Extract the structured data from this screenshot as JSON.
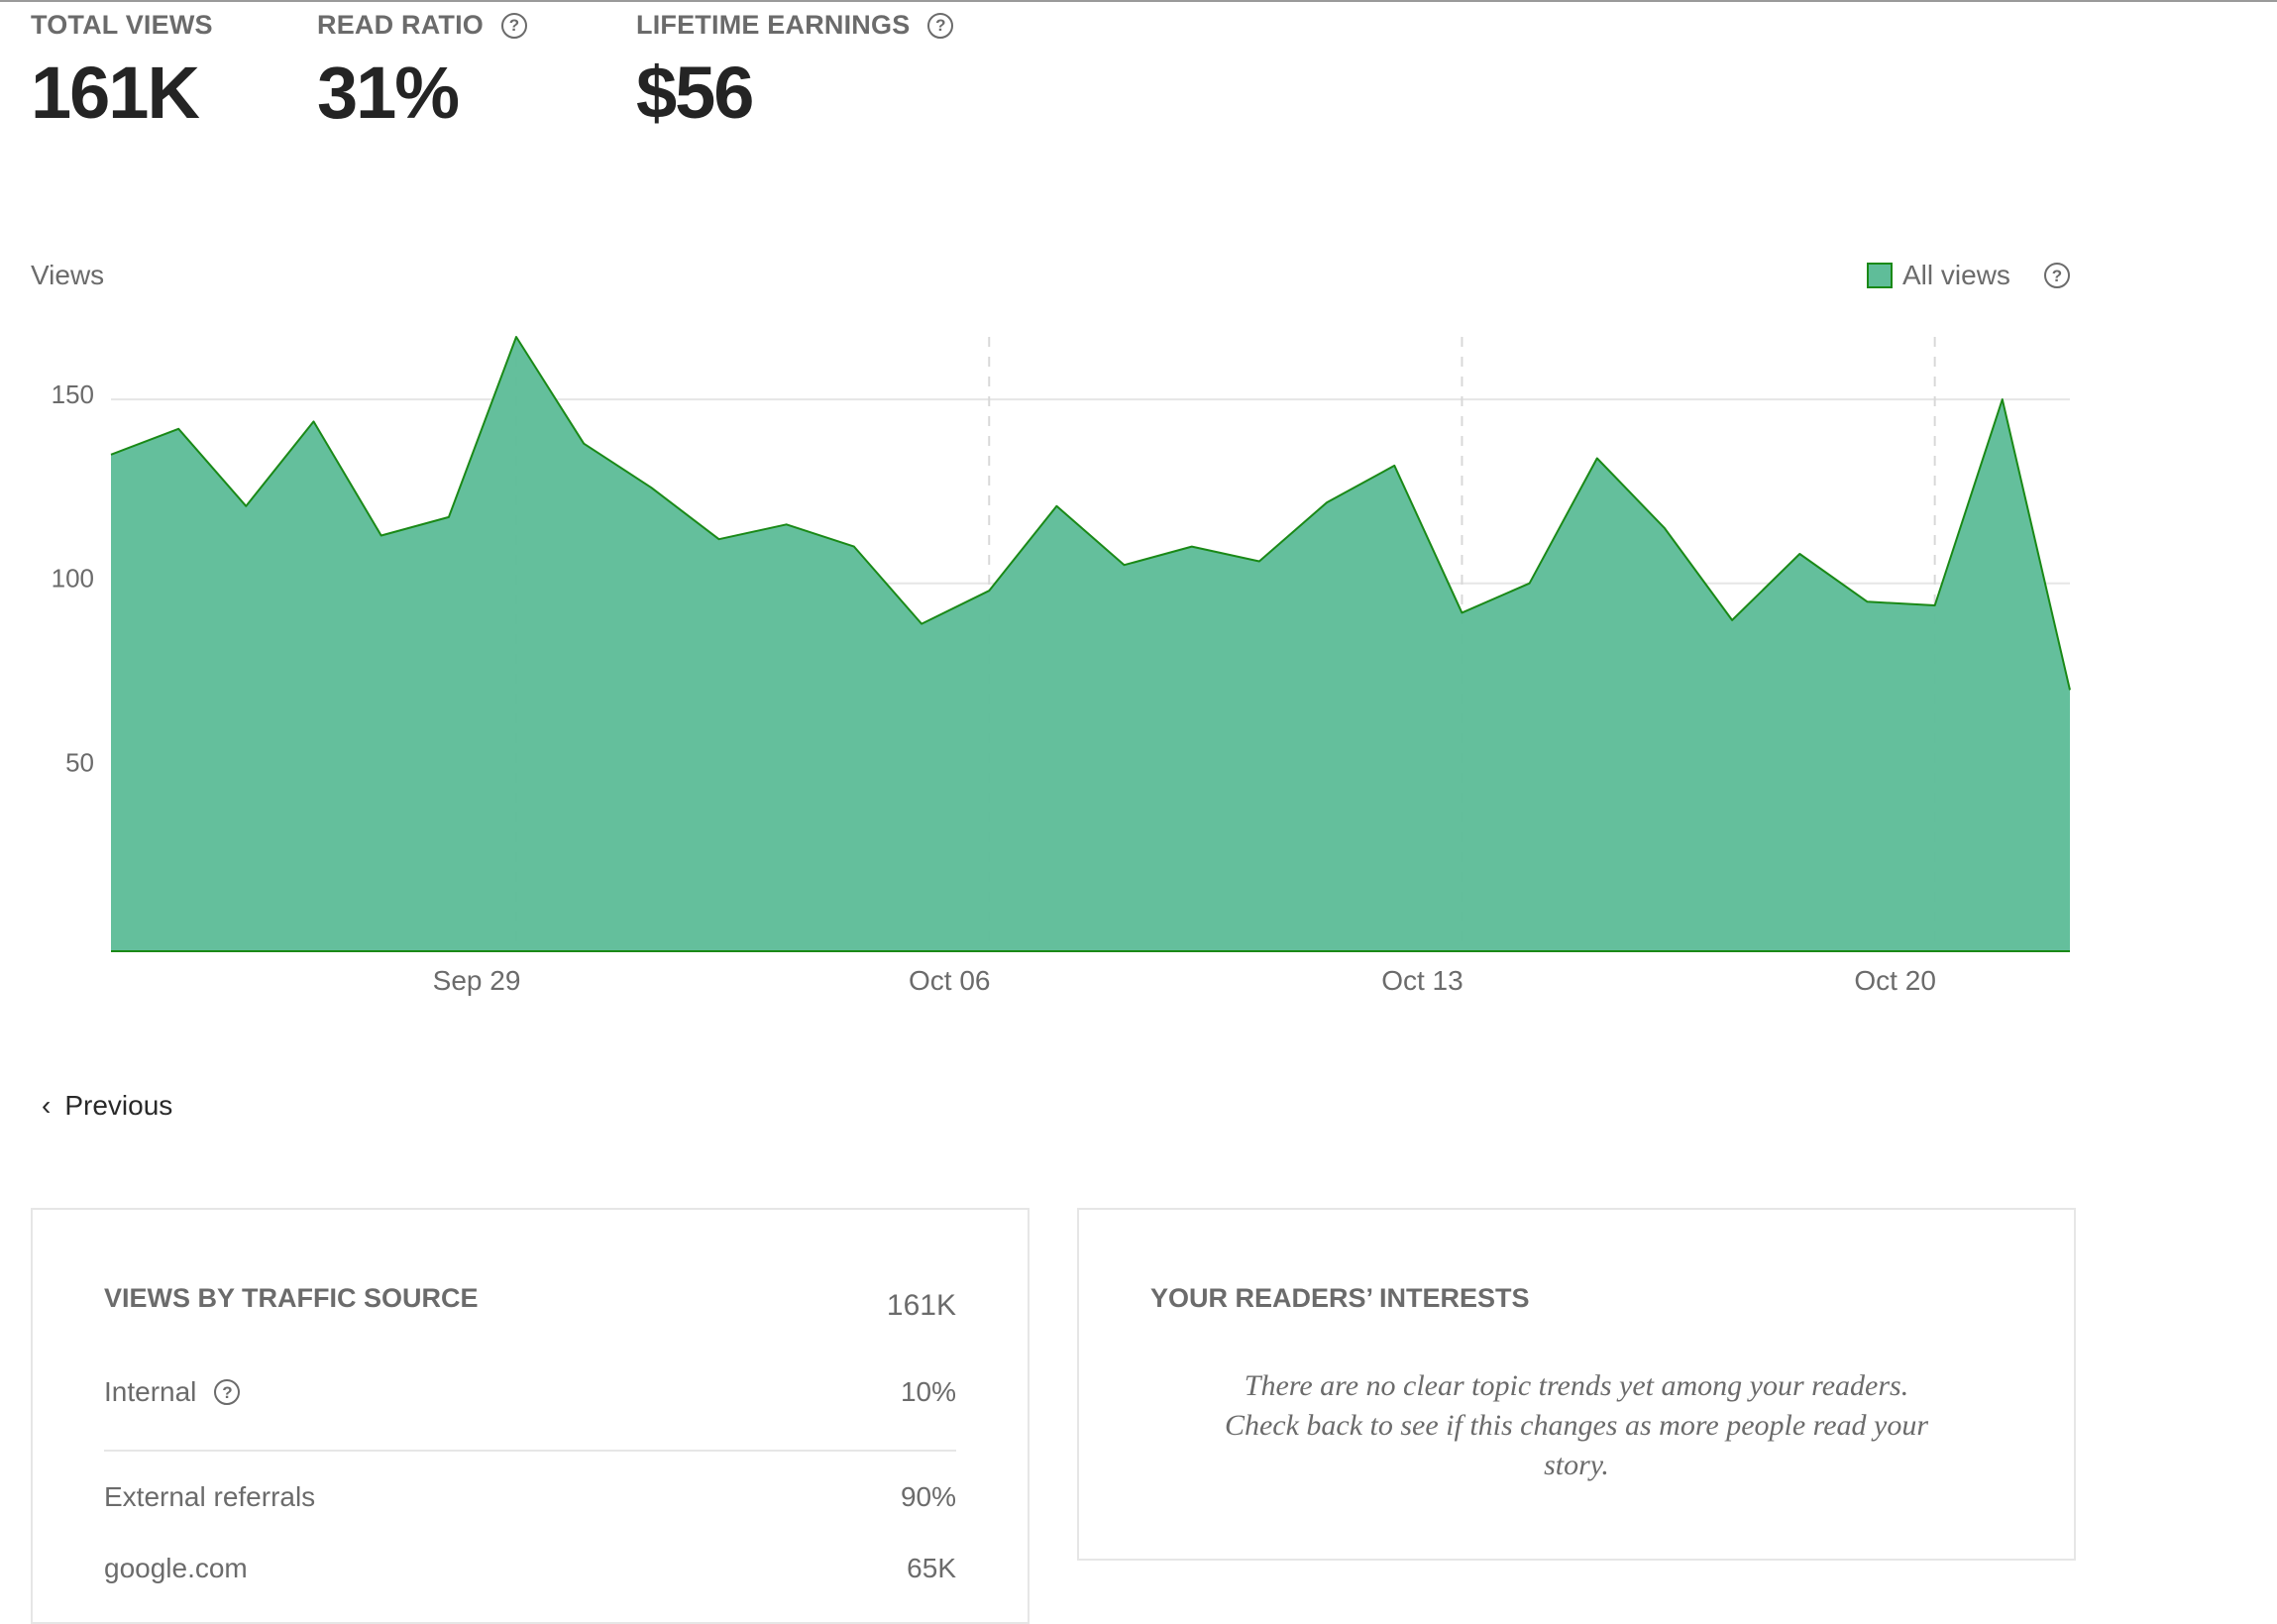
{
  "stats": [
    {
      "label": "TOTAL VIEWS",
      "value": "161K",
      "help": false
    },
    {
      "label": "READ RATIO",
      "value": "31%",
      "help": true
    },
    {
      "label": "LIFETIME EARNINGS",
      "value": "$56",
      "help": true
    }
  ],
  "help_glyph": "?",
  "chart_data": {
    "type": "area",
    "title": "Views",
    "series": [
      {
        "name": "All views",
        "color": "#5fbd99",
        "stroke": "#1a8917",
        "values": [
          135,
          142,
          121,
          144,
          113,
          118,
          167,
          138,
          126,
          112,
          116,
          110,
          89,
          98,
          121,
          105,
          110,
          106,
          122,
          132,
          92,
          100,
          134,
          115,
          90,
          108,
          95,
          94,
          150,
          71
        ]
      }
    ],
    "y_ticks": [
      50,
      100,
      150
    ],
    "ylim": [
      0,
      167
    ],
    "x_tick_labels": [
      {
        "label": "Sep 29",
        "index": 6
      },
      {
        "label": "Oct 06",
        "index": 13
      },
      {
        "label": "Oct 13",
        "index": 20
      },
      {
        "label": "Oct 20",
        "index": 27
      }
    ],
    "grid": true,
    "legend_position": "top-right"
  },
  "nav": {
    "previous_label": "Previous",
    "chevron": "‹"
  },
  "traffic": {
    "heading": "VIEWS BY TRAFFIC SOURCE",
    "total": "161K",
    "rows": [
      {
        "label": "Internal",
        "value": "10%",
        "help": true
      },
      {
        "label": "External referrals",
        "value": "90%"
      },
      {
        "label": "google.com",
        "value": "65K"
      }
    ]
  },
  "interests": {
    "heading": "YOUR READERS’ INTERESTS",
    "message": "There are no clear topic trends yet among your readers. Check back to see if this changes as more people read your story."
  }
}
